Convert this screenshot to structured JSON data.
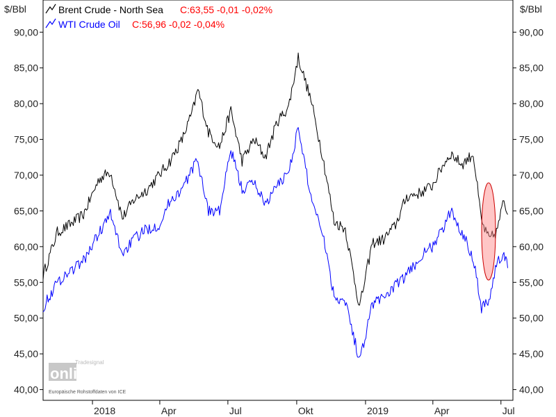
{
  "chart_data": {
    "type": "line",
    "unit_left": "$/Bbl",
    "unit_right": "$/Bbl",
    "ylim": [
      38.5,
      94.5
    ],
    "yticks": [
      "40,00",
      "45,00",
      "50,00",
      "55,00",
      "60,00",
      "65,00",
      "70,00",
      "75,00",
      "80,00",
      "85,00",
      "90,00"
    ],
    "ytick_values": [
      40,
      45,
      50,
      55,
      60,
      65,
      70,
      75,
      80,
      85,
      90
    ],
    "xlim": [
      "2017-10-27",
      "2019-07-17"
    ],
    "xticks": [
      {
        "label": "2018",
        "date": "2018-01-01"
      },
      {
        "label": "Apr",
        "date": "2018-04-01"
      },
      {
        "label": "Jul",
        "date": "2018-07-01"
      },
      {
        "label": "Okt",
        "date": "2018-10-01"
      },
      {
        "label": "2019",
        "date": "2019-01-01"
      },
      {
        "label": "Apr",
        "date": "2019-04-01"
      },
      {
        "label": "Jul",
        "date": "2019-07-01"
      }
    ],
    "x": [
      "2017-10-27",
      "2017-11-15",
      "2017-12-01",
      "2017-12-20",
      "2018-01-10",
      "2018-01-25",
      "2018-02-10",
      "2018-02-25",
      "2018-03-15",
      "2018-03-31",
      "2018-04-15",
      "2018-05-01",
      "2018-05-15",
      "2018-05-22",
      "2018-06-05",
      "2018-06-20",
      "2018-07-05",
      "2018-07-20",
      "2018-08-05",
      "2018-08-20",
      "2018-09-05",
      "2018-09-20",
      "2018-10-03",
      "2018-10-20",
      "2018-11-05",
      "2018-11-20",
      "2018-12-05",
      "2018-12-24",
      "2019-01-10",
      "2019-01-25",
      "2019-02-10",
      "2019-02-25",
      "2019-03-15",
      "2019-03-31",
      "2019-04-15",
      "2019-04-25",
      "2019-05-10",
      "2019-05-25",
      "2019-06-05",
      "2019-06-15",
      "2019-06-25",
      "2019-07-05",
      "2019-07-10"
    ],
    "series": [
      {
        "name": "Brent Crude - North Sea",
        "color": "#000000",
        "values": [
          56.0,
          62.0,
          63.0,
          64.5,
          69.5,
          70.5,
          64.0,
          66.5,
          68.0,
          70.0,
          72.0,
          75.0,
          79.0,
          82.0,
          76.0,
          74.0,
          79.0,
          72.0,
          75.0,
          72.5,
          77.5,
          79.5,
          86.5,
          80.5,
          72.5,
          63.5,
          62.5,
          51.5,
          60.5,
          61.0,
          63.0,
          67.0,
          67.5,
          68.5,
          71.5,
          73.0,
          71.5,
          73.0,
          63.5,
          61.0,
          62.0,
          66.5,
          64.5
        ]
      },
      {
        "name": "WTI Crude Oil",
        "color": "#0000ff",
        "values": [
          51.5,
          55.0,
          56.5,
          58.0,
          62.0,
          64.5,
          59.0,
          61.0,
          62.5,
          63.0,
          66.5,
          68.0,
          71.0,
          72.0,
          65.0,
          65.0,
          73.5,
          68.0,
          69.0,
          66.0,
          68.5,
          70.5,
          76.5,
          67.0,
          62.0,
          53.0,
          52.5,
          44.0,
          52.0,
          53.0,
          54.5,
          56.0,
          58.5,
          60.0,
          62.5,
          65.0,
          62.0,
          58.5,
          51.5,
          52.5,
          57.5,
          59.0,
          57.0
        ]
      }
    ],
    "legend": {
      "placement": "top-left",
      "items": [
        {
          "name": "Brent Crude - North Sea",
          "close": "C:63,55 -0,01 -0,02%",
          "color": "#000000"
        },
        {
          "name": "WTI Crude Oil",
          "close": "C:56,96 -0,02 -0,04%",
          "color": "#0000ff"
        }
      ],
      "close_color": "#ff0000"
    },
    "highlight": {
      "shape": "ellipse",
      "fill": "#ff8080",
      "stroke": "#cc0000"
    }
  },
  "watermark": {
    "brand_small": "Tradesignal",
    "brand_big": "online",
    "source_note": "Europäische Rohstoffdaten von ICE"
  }
}
